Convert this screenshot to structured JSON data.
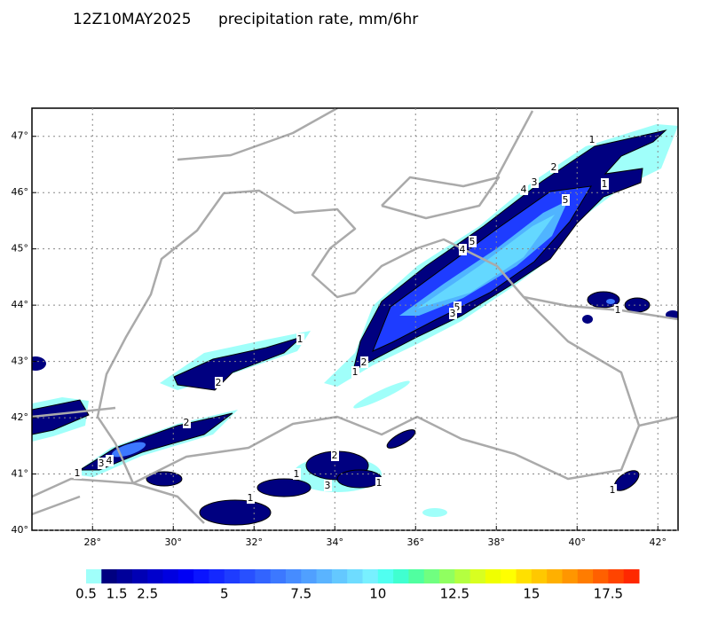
{
  "chart_data": {
    "type": "map",
    "time": "12Z10MAY2025",
    "title": "precipitation rate, mm/6hr",
    "xlim": [
      26.5,
      42.5
    ],
    "ylim": [
      40,
      47.5
    ],
    "xticks": [
      {
        "value": 28,
        "label": "28°"
      },
      {
        "value": 30,
        "label": "30°"
      },
      {
        "value": 32,
        "label": "32°"
      },
      {
        "value": 34,
        "label": "34°"
      },
      {
        "value": 36,
        "label": "36°"
      },
      {
        "value": 38,
        "label": "38°"
      },
      {
        "value": 40,
        "label": "40°"
      },
      {
        "value": 42,
        "label": "42°"
      }
    ],
    "yticks": [
      {
        "value": 40,
        "label": "40°"
      },
      {
        "value": 41,
        "label": "41°"
      },
      {
        "value": 42,
        "label": "42°"
      },
      {
        "value": 43,
        "label": "43°"
      },
      {
        "value": 44,
        "label": "44°"
      },
      {
        "value": 45,
        "label": "45°"
      },
      {
        "value": 46,
        "label": "46°"
      },
      {
        "value": 47,
        "label": "47°"
      }
    ],
    "grid": true,
    "contour_labels": [
      1,
      2,
      3,
      4,
      1,
      5,
      5,
      4,
      5,
      3,
      1,
      2,
      1,
      2,
      2,
      4,
      3,
      1,
      2,
      1,
      3,
      1,
      1,
      1,
      1
    ],
    "colorbar": {
      "clim": [
        0.5,
        18.5
      ],
      "ticks": [
        0.5,
        1.5,
        2.5,
        5,
        7.5,
        10,
        12.5,
        15,
        17.5
      ],
      "colors": [
        "#a0fffa",
        "#000080",
        "#00009a",
        "#0000b4",
        "#0000cc",
        "#0000e0",
        "#0000f5",
        "#0a14ff",
        "#1428ff",
        "#1e3cff",
        "#2850ff",
        "#3264ff",
        "#3c78ff",
        "#468cff",
        "#50a0ff",
        "#5ab4ff",
        "#64c8ff",
        "#6edcff",
        "#78f0ff",
        "#50fff0",
        "#40ffd0",
        "#50ffa0",
        "#70ff80",
        "#90ff60",
        "#b4ff40",
        "#d8ff20",
        "#f0ff00",
        "#ffff00",
        "#ffe000",
        "#ffc800",
        "#ffb000",
        "#ff9600",
        "#ff7c00",
        "#ff6000",
        "#ff4400",
        "#ff2800"
      ]
    }
  }
}
